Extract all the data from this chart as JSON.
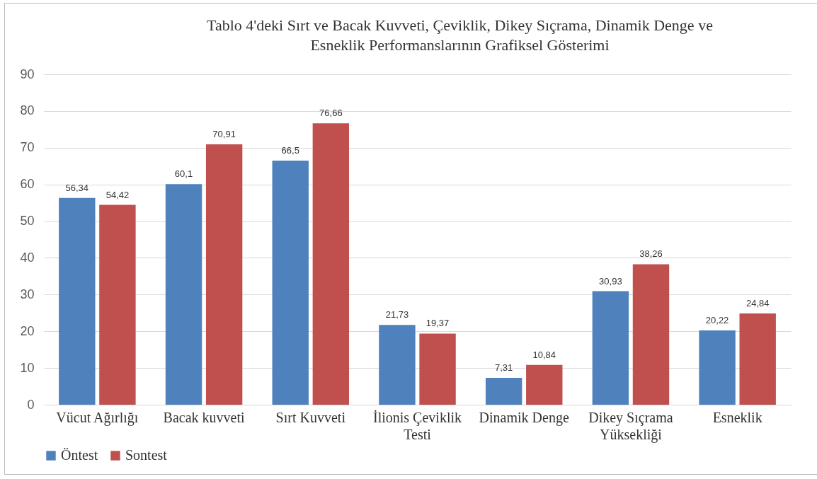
{
  "chart_data": {
    "type": "bar",
    "title": [
      "Tablo 4'deki  Sırt ve Bacak Kuvveti, Çeviklik, Dikey Sıçrama, Dinamik Denge ve",
      "Esneklik Performanslarının Grafiksel Gösterimi"
    ],
    "categories": [
      "Vücut Ağırlığı",
      "Bacak kuvveti",
      "Sırt Kuvveti",
      "İlionis Çeviklik Testi",
      "Dinamik Denge",
      "Dikey Sıçrama Yüksekliği",
      "Esneklik"
    ],
    "series": [
      {
        "name": "Öntest",
        "color": "#4f81bd",
        "values": [
          56.34,
          60.1,
          66.5,
          21.73,
          7.31,
          30.93,
          20.22
        ],
        "value_labels": [
          "56,34",
          "60,1",
          "66,5",
          "21,73",
          "7,31",
          "30,93",
          "20,22"
        ]
      },
      {
        "name": "Sontest",
        "color": "#c0504d",
        "values": [
          54.42,
          70.91,
          76.66,
          19.37,
          10.84,
          38.26,
          24.84
        ],
        "value_labels": [
          "54,42",
          "70,91",
          "76,66",
          "19,37",
          "10,84",
          "38,26",
          "24,84"
        ]
      }
    ],
    "ylim": [
      0,
      90
    ],
    "yticks": [
      0,
      10,
      20,
      30,
      40,
      50,
      60,
      70,
      80,
      90
    ],
    "grid": "y",
    "legend": "bottom"
  }
}
